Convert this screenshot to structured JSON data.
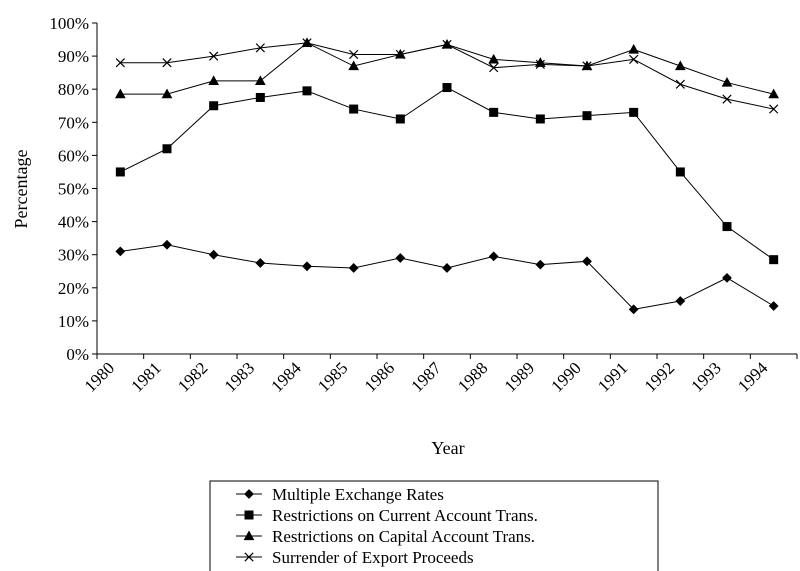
{
  "chart_data": {
    "type": "line",
    "title": "",
    "xlabel": "Year",
    "ylabel": "Percentage",
    "ylim": [
      0,
      100
    ],
    "y_ticks": [
      "0%",
      "10%",
      "20%",
      "30%",
      "40%",
      "50%",
      "60%",
      "70%",
      "80%",
      "90%",
      "100%"
    ],
    "categories": [
      "1980",
      "1981",
      "1982",
      "1983",
      "1984",
      "1985",
      "1986",
      "1987",
      "1988",
      "1989",
      "1990",
      "1991",
      "1992",
      "1993",
      "1994"
    ],
    "legend_position": "bottom",
    "grid": false,
    "series": [
      {
        "name": "Multiple Exchange Rates",
        "marker": "diamond",
        "values": [
          31,
          33,
          30,
          27.5,
          26.5,
          26,
          29,
          26,
          29.5,
          27,
          28,
          13.5,
          16,
          23,
          14.5
        ]
      },
      {
        "name": "Restrictions on Current Account Trans.",
        "marker": "square",
        "values": [
          55,
          62,
          75,
          77.5,
          79.5,
          74,
          71,
          80.5,
          73,
          71,
          72,
          73,
          55,
          38.5,
          28.5
        ]
      },
      {
        "name": "Restrictions on Capital Account Trans.",
        "marker": "triangle",
        "values": [
          78.5,
          78.5,
          82.5,
          82.5,
          94,
          87,
          90.5,
          93.5,
          89,
          88,
          87,
          92,
          87,
          82,
          78.5
        ]
      },
      {
        "name": "Surrender of Export Proceeds",
        "marker": "x",
        "values": [
          88,
          88,
          90,
          92.5,
          94,
          90.5,
          90.5,
          93.5,
          86.5,
          87.5,
          87,
          89,
          81.5,
          77,
          74
        ]
      }
    ]
  }
}
